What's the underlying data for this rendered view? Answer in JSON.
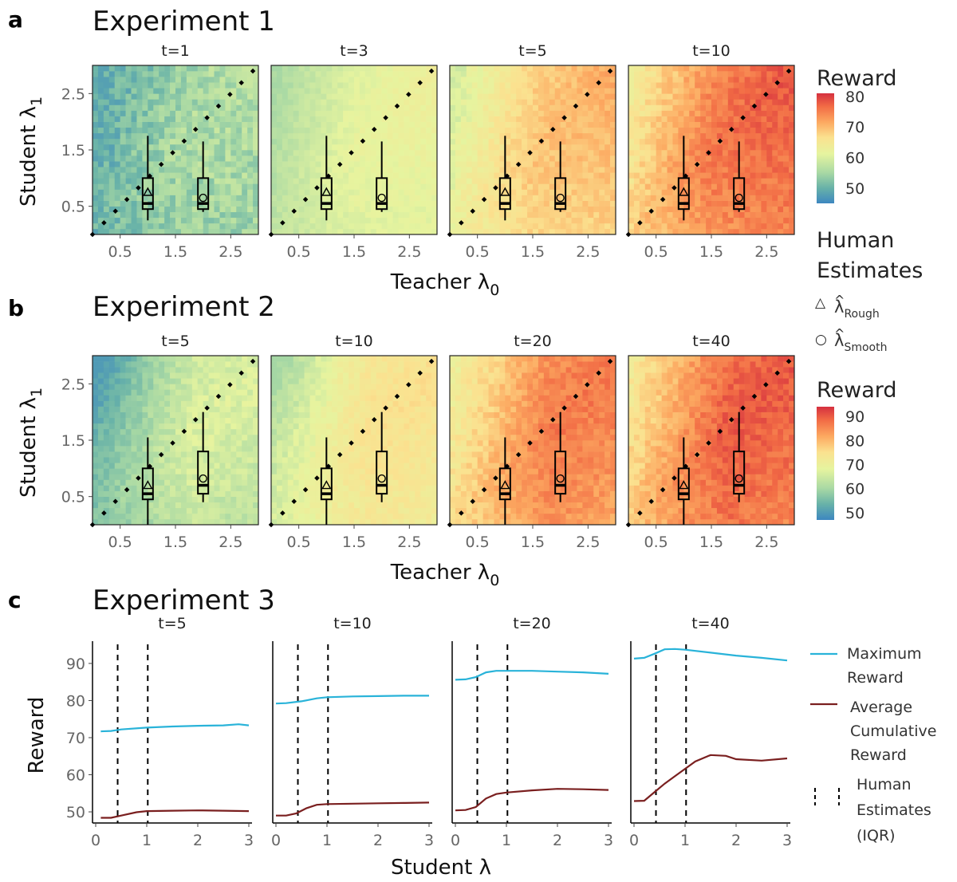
{
  "panels": [
    {
      "letter": "a",
      "title": "Experiment 1",
      "facets": [
        "t=1",
        "t=3",
        "t=5",
        "t=10"
      ],
      "xlabel": "Teacher λ",
      "xlabel_sub": "0",
      "ylabel": "Student λ",
      "ylabel_sub": "1"
    },
    {
      "letter": "b",
      "title": "Experiment 2",
      "facets": [
        "t=5",
        "t=10",
        "t=20",
        "t=40"
      ],
      "xlabel": "Teacher λ",
      "xlabel_sub": "0",
      "ylabel": "Student λ",
      "ylabel_sub": "1"
    },
    {
      "letter": "c",
      "title": "Experiment 3",
      "facets": [
        "t=5",
        "t=10",
        "t=20",
        "t=40"
      ],
      "xlabel": "Student λ",
      "ylabel": "Reward"
    }
  ],
  "legends": {
    "reward_a": {
      "title": "Reward",
      "ticks": [
        "80",
        "70",
        "60",
        "50"
      ]
    },
    "human": {
      "title_line1": "Human",
      "title_line2": "Estimates",
      "rough_symbol": "△",
      "rough_label": "λ",
      "rough_sub": "Rough",
      "smooth_symbol": "○",
      "smooth_label": "λ",
      "smooth_sub": "Smooth",
      "hat": "^"
    },
    "reward_b": {
      "title": "Reward",
      "ticks": [
        "90",
        "80",
        "70",
        "60",
        "50"
      ]
    },
    "lines": {
      "max_line1": "Maximum",
      "max_line2": "Reward",
      "avg_line1": "Average",
      "avg_line2": "Cumulative",
      "avg_line3": "Reward",
      "human_line1": "Human",
      "human_line2": "Estimates",
      "human_line3": "(IQR)"
    }
  },
  "colors": {
    "max_reward": "#29b3d9",
    "avg_reward": "#7a1f1f",
    "colorscale": [
      "#3d87c0",
      "#68b2a8",
      "#a9d9a4",
      "#e6f49f",
      "#fbe18f",
      "#fca860",
      "#f26c45",
      "#d5303f"
    ]
  },
  "chart_data": [
    {
      "type": "heatmap",
      "title": "Experiment 1",
      "facets": [
        "t=1",
        "t=3",
        "t=5",
        "t=10"
      ],
      "xlabel": "Teacher λ0",
      "ylabel": "Student λ1",
      "xlim": [
        0,
        3
      ],
      "ylim": [
        0,
        3
      ],
      "xticks": [
        0.5,
        1.5,
        2.5
      ],
      "yticks": [
        0.5,
        1.5,
        2.5
      ],
      "color_range": [
        45,
        81
      ],
      "color_ticks": [
        50,
        60,
        70,
        80
      ],
      "approx_reward_range_by_facet": [
        [
          48,
          58
        ],
        [
          55,
          63
        ],
        [
          58,
          72
        ],
        [
          62,
          80
        ]
      ],
      "diagonal": "dotted line student λ1 = teacher λ0",
      "human_estimates": [
        {
          "name": "λ̂ Rough",
          "teacher": 1.0,
          "q1": 0.45,
          "median": 0.55,
          "q3": 1.0,
          "lower": 0.25,
          "upper": 1.75,
          "mean": 0.75
        },
        {
          "name": "λ̂ Smooth",
          "teacher": 2.0,
          "q1": 0.45,
          "median": 0.55,
          "q3": 1.0,
          "lower": 0.4,
          "upper": 1.65,
          "mean": 0.65
        }
      ]
    },
    {
      "type": "heatmap",
      "title": "Experiment 2",
      "facets": [
        "t=5",
        "t=10",
        "t=20",
        "t=40"
      ],
      "xlabel": "Teacher λ0",
      "ylabel": "Student λ1",
      "xlim": [
        0,
        3
      ],
      "ylim": [
        0,
        3
      ],
      "xticks": [
        0.5,
        1.5,
        2.5
      ],
      "yticks": [
        0.5,
        1.5,
        2.5
      ],
      "color_range": [
        47,
        94
      ],
      "color_ticks": [
        50,
        60,
        70,
        80,
        90
      ],
      "approx_reward_range_by_facet": [
        [
          50,
          68
        ],
        [
          60,
          75
        ],
        [
          66,
          88
        ],
        [
          68,
          92
        ]
      ],
      "diagonal": "dotted line student λ1 = teacher λ0",
      "human_estimates": [
        {
          "name": "λ̂ Rough",
          "teacher": 1.0,
          "q1": 0.45,
          "median": 0.55,
          "q3": 1.0,
          "lower": 0.0,
          "upper": 1.55,
          "mean": 0.7
        },
        {
          "name": "λ̂ Smooth",
          "teacher": 2.0,
          "q1": 0.55,
          "median": 0.7,
          "q3": 1.3,
          "lower": 0.4,
          "upper": 2.0,
          "mean": 0.82
        }
      ]
    },
    {
      "type": "line",
      "title": "Experiment 3",
      "facets": [
        "t=5",
        "t=10",
        "t=20",
        "t=40"
      ],
      "xlabel": "Student λ",
      "ylabel": "Reward",
      "xlim": [
        0,
        3
      ],
      "ylim": [
        47,
        96
      ],
      "xticks": [
        0,
        1,
        2,
        3
      ],
      "yticks": [
        50,
        60,
        70,
        80,
        90
      ],
      "human_estimates_iqr": [
        0.43,
        1.02
      ],
      "series_by_facet": [
        {
          "facet": "t=5",
          "series": [
            {
              "name": "Maximum Reward",
              "x": [
                0.1,
                0.3,
                0.5,
                1.0,
                1.5,
                2.0,
                2.5,
                2.8,
                3.0
              ],
              "y": [
                71.7,
                71.8,
                72.2,
                72.7,
                73.0,
                73.2,
                73.3,
                73.6,
                73.3
              ]
            },
            {
              "name": "Average Cumulative Reward",
              "x": [
                0.1,
                0.3,
                0.5,
                0.8,
                1.0,
                1.5,
                2.0,
                2.5,
                3.0
              ],
              "y": [
                48.4,
                48.4,
                49.0,
                49.9,
                50.2,
                50.3,
                50.4,
                50.3,
                50.2
              ]
            }
          ]
        },
        {
          "facet": "t=10",
          "series": [
            {
              "name": "Maximum Reward",
              "x": [
                0.0,
                0.2,
                0.5,
                0.8,
                1.0,
                1.5,
                2.0,
                2.5,
                3.0
              ],
              "y": [
                79.2,
                79.3,
                79.8,
                80.6,
                80.9,
                81.1,
                81.2,
                81.3,
                81.3
              ]
            },
            {
              "name": "Average Cumulative Reward",
              "x": [
                0.0,
                0.2,
                0.4,
                0.6,
                0.8,
                1.0,
                1.5,
                2.0,
                2.5,
                3.0
              ],
              "y": [
                49.0,
                49.0,
                49.6,
                51.0,
                51.9,
                52.1,
                52.2,
                52.3,
                52.4,
                52.5
              ]
            }
          ]
        },
        {
          "facet": "t=20",
          "series": [
            {
              "name": "Maximum Reward",
              "x": [
                0.0,
                0.2,
                0.4,
                0.6,
                0.8,
                1.0,
                1.5,
                2.0,
                2.5,
                3.0
              ],
              "y": [
                85.6,
                85.7,
                86.3,
                87.6,
                88.0,
                88.0,
                88.0,
                87.8,
                87.6,
                87.2
              ]
            },
            {
              "name": "Average Cumulative Reward",
              "x": [
                0.0,
                0.2,
                0.4,
                0.6,
                0.8,
                1.0,
                1.5,
                2.0,
                2.5,
                3.0
              ],
              "y": [
                50.4,
                50.5,
                51.3,
                53.6,
                54.8,
                55.2,
                55.8,
                56.2,
                56.1,
                55.9
              ]
            }
          ]
        },
        {
          "facet": "t=40",
          "series": [
            {
              "name": "Maximum Reward",
              "x": [
                0.0,
                0.2,
                0.4,
                0.6,
                0.8,
                1.0,
                1.5,
                2.0,
                2.5,
                3.0
              ],
              "y": [
                91.3,
                91.5,
                92.6,
                93.8,
                93.9,
                93.7,
                92.9,
                92.1,
                91.5,
                90.8
              ]
            },
            {
              "name": "Average Cumulative Reward",
              "x": [
                0.0,
                0.2,
                0.4,
                0.6,
                0.8,
                1.0,
                1.2,
                1.5,
                1.8,
                2.0,
                2.5,
                3.0
              ],
              "y": [
                52.9,
                53.0,
                55.3,
                57.6,
                59.6,
                61.6,
                63.6,
                65.3,
                65.1,
                64.2,
                63.8,
                64.4
              ]
            }
          ]
        }
      ]
    }
  ]
}
